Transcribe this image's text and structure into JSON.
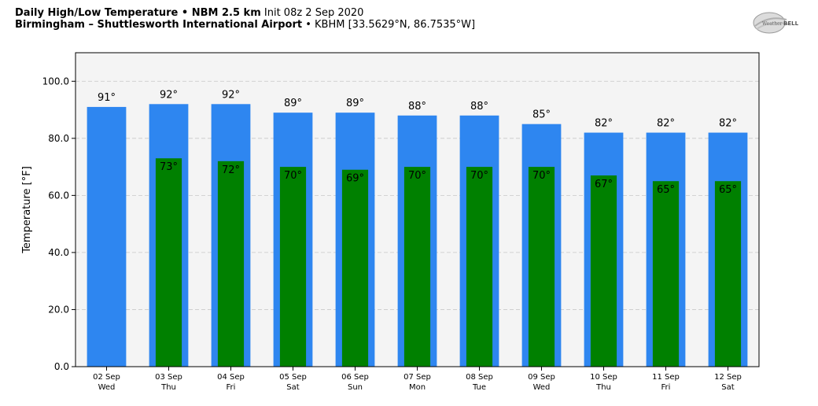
{
  "header": {
    "line1_bold": "Daily High/Low Temperature • NBM 2.5 km",
    "line1_rest": "Init 08z 2 Sep 2020",
    "line2_bold": "Birmingham – Shuttlesworth International Airport",
    "line2_rest": "• KBHM [33.5629°N, 86.7535°W]"
  },
  "logo": {
    "text_left": "Weather",
    "text_right": "BELL"
  },
  "chart_data": {
    "type": "bar",
    "title": "Daily High/Low Temperature • NBM 2.5 km",
    "ylabel": "Temperature [°F]",
    "xlabel": "",
    "ylim": [
      0,
      110
    ],
    "yticks": [
      "0.0",
      "20.0",
      "40.0",
      "60.0",
      "80.0",
      "100.0"
    ],
    "ytick_values": [
      0,
      20,
      40,
      60,
      80,
      100
    ],
    "grid": true,
    "categories": [
      {
        "date": "02 Sep",
        "day": "Wed"
      },
      {
        "date": "03 Sep",
        "day": "Thu"
      },
      {
        "date": "04 Sep",
        "day": "Fri"
      },
      {
        "date": "05 Sep",
        "day": "Sat"
      },
      {
        "date": "06 Sep",
        "day": "Sun"
      },
      {
        "date": "07 Sep",
        "day": "Mon"
      },
      {
        "date": "08 Sep",
        "day": "Tue"
      },
      {
        "date": "09 Sep",
        "day": "Wed"
      },
      {
        "date": "10 Sep",
        "day": "Thu"
      },
      {
        "date": "11 Sep",
        "day": "Fri"
      },
      {
        "date": "12 Sep",
        "day": "Sat"
      }
    ],
    "series": [
      {
        "key": "high",
        "color": "#2e86f0",
        "values": [
          91,
          92,
          92,
          89,
          89,
          88,
          88,
          85,
          82,
          82,
          82
        ],
        "labels": [
          "91°",
          "92°",
          "92°",
          "89°",
          "89°",
          "88°",
          "88°",
          "85°",
          "82°",
          "82°",
          "82°"
        ]
      },
      {
        "key": "low",
        "color": "#008000",
        "values": [
          null,
          73,
          72,
          70,
          69,
          70,
          70,
          70,
          67,
          65,
          65
        ],
        "labels": [
          null,
          "73°",
          "72°",
          "70°",
          "69°",
          "70°",
          "70°",
          "70°",
          "67°",
          "65°",
          "65°"
        ]
      }
    ]
  }
}
